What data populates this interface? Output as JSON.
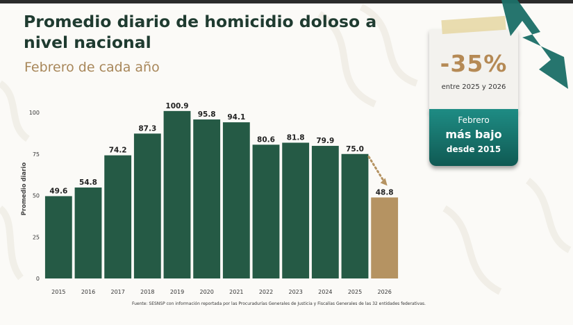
{
  "title": "Promedio diario de homicidio doloso a nivel nacional",
  "subtitle": "Febrero de cada año",
  "callout": {
    "percent": "-35%",
    "range_text": "entre 2025 y 2026",
    "line1": "Febrero",
    "line2": "más bajo",
    "line3": "desde 2015"
  },
  "source": "Fuente: SESNSP con información reportada por las Procuradurías Generales de Justicia y Fiscalías Generales de las 32 entidades federativas.",
  "colors": {
    "bar": "#255a45",
    "highlight": "#b59362",
    "title": "#1f3b30",
    "subtitle": "#a8875a",
    "callout_teal": "#17776f"
  },
  "chart_data": {
    "type": "bar",
    "title": "Promedio diario de homicidio doloso a nivel nacional",
    "subtitle": "Febrero de cada año",
    "xlabel": "",
    "ylabel": "Promedio diario",
    "ylim": [
      0,
      100
    ],
    "yticks": [
      0,
      25,
      50,
      75,
      100
    ],
    "categories": [
      "2015",
      "2016",
      "2017",
      "2018",
      "2019",
      "2020",
      "2021",
      "2022",
      "2023",
      "2024",
      "2025",
      "2026"
    ],
    "values": [
      49.6,
      54.8,
      74.2,
      87.3,
      100.9,
      95.8,
      94.1,
      80.6,
      81.8,
      79.9,
      75.0,
      48.8
    ],
    "value_labels": [
      "49.6",
      "54.8",
      "74.2",
      "87.3",
      "100.9",
      "95.8",
      "94.1",
      "80.6",
      "81.8",
      "79.9",
      "75.0",
      "48.8"
    ],
    "highlight_category": "2026",
    "grid": false,
    "legend": "none"
  }
}
